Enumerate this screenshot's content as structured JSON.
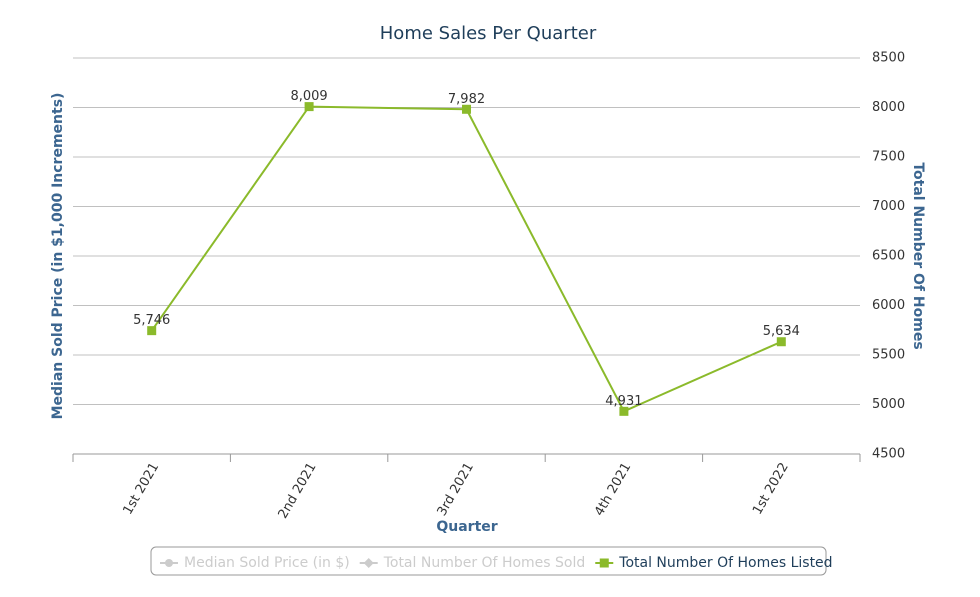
{
  "chart_data": {
    "type": "line",
    "title": "Home Sales Per Quarter",
    "x_label": "Quarter",
    "y_label": "Median Sold Price (in $1,000 Increments)",
    "y2_label": "Total Number Of Homes",
    "categories": [
      "1st 2021",
      "2nd 2021",
      "3rd 2021",
      "4th 2021",
      "1st 2022"
    ],
    "series": [
      {
        "name": "Median Sold Price (in $)",
        "color": "#cccccc",
        "visible": false,
        "marker": "circle",
        "values": [
          null,
          null,
          null,
          null,
          null
        ]
      },
      {
        "name": "Total Number Of Homes Sold",
        "color": "#cccccc",
        "visible": false,
        "marker": "diamond",
        "values": [
          null,
          null,
          null,
          null,
          null
        ]
      },
      {
        "name": "Total Number Of Homes Listed",
        "color": "#8bba2b",
        "visible": true,
        "marker": "square",
        "axis": "y2",
        "values": [
          5746,
          8009,
          7982,
          4931,
          5634
        ],
        "value_labels": [
          "5,746",
          "8,009",
          "7,982",
          "4,931",
          "5,634"
        ]
      }
    ],
    "y2lim": [
      4500,
      8500
    ],
    "y2ticks": [
      4500,
      5000,
      5500,
      6000,
      6500,
      7000,
      7500,
      8000,
      8500
    ],
    "grid": true,
    "legend": "bottom"
  }
}
